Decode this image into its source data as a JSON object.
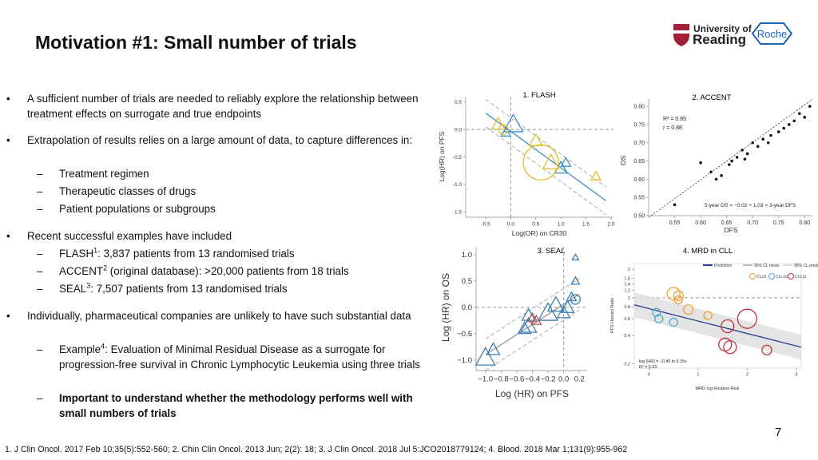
{
  "header": {
    "title": "Motivation #1: Small number of trials",
    "logo_university": [
      "University of",
      "Reading"
    ],
    "logo_company": "Roche"
  },
  "bullets": [
    {
      "text": "A sufficient number of trials are needed to reliably explore the relationship between treatment effects on surrogate and true endpoints"
    },
    {
      "text": "Extrapolation of results relies on a large amount of data, to capture differences in:",
      "subs": [
        {
          "text": "Treatment regimen"
        },
        {
          "text": "Therapeutic classes of drugs"
        },
        {
          "text": "Patient populations or subgroups"
        }
      ]
    },
    {
      "text": "Recent successful examples have included",
      "subs": [
        {
          "label": "FLASH",
          "ref": "1",
          "text": ": 3,837 patients from 13 randomised trials"
        },
        {
          "label": "ACCENT",
          "ref": "2",
          "text": " (original database): >20,000 patients from 18 trials"
        },
        {
          "label": "SEAL",
          "ref": "3",
          "text": ": 7,507 patients from 13 randomised trials"
        }
      ]
    },
    {
      "text": "Individually, pharmaceutical companies are unlikely to have such substantial data",
      "subs": [
        {
          "label": "Example",
          "ref": "4",
          "text": ": Evaluation of Minimal Residual Disease as a surrogate for progression-free survival in Chronic Lymphocytic Leukemia using three trials"
        },
        {
          "text": "Important to understand whether the methodology performs well with small numbers of trials",
          "bold": true
        }
      ]
    }
  ],
  "figures": [
    {
      "caption": "1. FLASH",
      "xlabel": "Log(OR) on CR30",
      "ylabel": "Log(HR) on PFS",
      "xlim": [
        -0.9,
        2.05
      ],
      "ylim": [
        -1.6,
        0.6
      ],
      "xticks": [
        {
          "value": -0.5,
          "label": "-0.5"
        },
        {
          "value": 0,
          "label": "0.0"
        },
        0.5,
        {
          "value": 1,
          "label": "1.0"
        },
        1.5,
        {
          "value": 2,
          "label": "2.0"
        }
      ],
      "yticks": [
        0.5,
        {
          "value": 0,
          "label": "0.0"
        },
        -0.5,
        {
          "value": -1,
          "label": "-1.0"
        },
        -1.5
      ],
      "reference": {
        "x": 0,
        "y": 0
      },
      "fit": [
        [
          -0.5,
          0.3
        ],
        [
          1.9,
          -1.3
        ]
      ],
      "band": 0.25,
      "fit_color": "#3a8fc5",
      "series": [
        {
          "marker": "triangle",
          "color": "#3a8fc5",
          "points": [
            [
              0.05,
              0.1,
              12
            ],
            [
              -0.1,
              -0.05,
              6
            ],
            [
              1.0,
              -0.7,
              8
            ],
            [
              1.1,
              -0.6,
              6
            ]
          ]
        },
        {
          "marker": "triangle",
          "color": "#e2c030",
          "points": [
            [
              0.5,
              -0.2,
              8
            ],
            [
              0.8,
              -0.6,
              10
            ],
            [
              1.7,
              -0.85,
              6
            ],
            [
              -0.25,
              0.1,
              8
            ]
          ]
        },
        {
          "marker": "circle",
          "color": "#e2c030",
          "points": [
            [
              0.6,
              -0.6,
              22
            ],
            [
              -0.15,
              0.0,
              6
            ]
          ]
        }
      ]
    },
    {
      "caption": "2. ACCENT",
      "xlabel": "DFS",
      "ylabel": "OS",
      "xlim": [
        0.5,
        0.815
      ],
      "ylim": [
        0.5,
        0.82
      ],
      "xticks": [
        0.55,
        {
          "value": 0.6,
          "label": "0.60"
        },
        0.65,
        {
          "value": 0.7,
          "label": "0.70"
        },
        0.75,
        {
          "value": 0.8,
          "label": "0.80"
        }
      ],
      "yticks": [
        {
          "value": 0.8,
          "label": "0.80"
        },
        0.75,
        {
          "value": 0.7,
          "label": "0.70"
        },
        0.65,
        {
          "value": 0.6,
          "label": "0.60"
        },
        0.55,
        {
          "value": 0.5,
          "label": "0.50"
        }
      ],
      "fit": [
        [
          0.5,
          0.495
        ],
        [
          0.815,
          0.8195
        ]
      ],
      "fit_color": "#333",
      "fit_dash": true,
      "annotations": [
        "R² = 0.85",
        "r = 0.88",
        "5-year OS = −0.02 + 1.03 × 3-year DFS"
      ],
      "series": [
        {
          "marker": "dot",
          "color": "#111",
          "points": [
            [
              0.55,
              0.53
            ],
            [
              0.6,
              0.645
            ],
            [
              0.62,
              0.62
            ],
            [
              0.63,
              0.6
            ],
            [
              0.64,
              0.61
            ],
            [
              0.655,
              0.64
            ],
            [
              0.66,
              0.65
            ],
            [
              0.67,
              0.66
            ],
            [
              0.68,
              0.68
            ],
            [
              0.685,
              0.655
            ],
            [
              0.69,
              0.67
            ],
            [
              0.7,
              0.7
            ],
            [
              0.71,
              0.69
            ],
            [
              0.72,
              0.71
            ],
            [
              0.73,
              0.7
            ],
            [
              0.735,
              0.72
            ],
            [
              0.75,
              0.73
            ],
            [
              0.76,
              0.74
            ],
            [
              0.77,
              0.75
            ],
            [
              0.78,
              0.76
            ],
            [
              0.79,
              0.78
            ],
            [
              0.8,
              0.77
            ],
            [
              0.81,
              0.8
            ]
          ]
        }
      ]
    },
    {
      "caption": "3. SEAL",
      "xlabel": "Log (HR) on PFS",
      "ylabel": "Log (HR) on OS",
      "xlim": [
        -1.12,
        0.3
      ],
      "ylim": [
        -1.2,
        1.15
      ],
      "xticks": [
        {
          "value": -1,
          "label": "−1.0"
        },
        {
          "value": -0.8,
          "label": "−0.8"
        },
        {
          "value": -0.6,
          "label": "−0.6"
        },
        {
          "value": -0.4,
          "label": "−0.4"
        },
        {
          "value": -0.2,
          "label": "−0.2"
        },
        {
          "value": 0,
          "label": "0.0"
        },
        0.2
      ],
      "yticks": [
        {
          "value": 1,
          "label": "1.0"
        },
        0.5,
        {
          "value": 0,
          "label": "0.0"
        },
        {
          "value": -0.5,
          "label": "−0.5"
        },
        {
          "value": -1,
          "label": "−1.0"
        }
      ],
      "reference": {
        "x": 0,
        "y": 0
      },
      "fit": [
        [
          -1.0,
          -0.9
        ],
        [
          0.2,
          0.25
        ]
      ],
      "band": 0.3,
      "fit_color": "#999",
      "series": [
        {
          "marker": "triangle",
          "color": "#3d7fb0",
          "points": [
            [
              -0.9,
              -0.8,
              8
            ],
            [
              -1.0,
              -0.95,
              12
            ],
            [
              -0.5,
              -0.4,
              8
            ],
            [
              -0.45,
              -0.35,
              10
            ],
            [
              -0.45,
              -0.15,
              8
            ],
            [
              -0.2,
              -0.1,
              12
            ],
            [
              -0.1,
              0.05,
              10
            ],
            [
              0.0,
              -0.1,
              8
            ],
            [
              0.05,
              0.0,
              8
            ],
            [
              0.1,
              0.2,
              6
            ],
            [
              0.15,
              0.95,
              4
            ],
            [
              0.15,
              0.5,
              5
            ]
          ]
        },
        {
          "marker": "triangle",
          "color": "#b85050",
          "points": [
            [
              -0.35,
              -0.25,
              6
            ],
            [
              -0.4,
              -0.2,
              6
            ]
          ]
        },
        {
          "marker": "circle",
          "color": "#3d7fb0",
          "points": [
            [
              0.15,
              0.15,
              6
            ]
          ]
        }
      ]
    },
    {
      "caption": "4. MRD in CLL",
      "xlabel": "MRD log Relative Risk",
      "ylabel": "PFS Hazard Ratio",
      "xlim": [
        -0.3,
        3.1
      ],
      "ylim": [
        0.18,
        2.3
      ],
      "ylog": true,
      "xticks": [
        0,
        1,
        2,
        3
      ],
      "yticks": [
        2,
        1.6,
        1.4,
        1.2,
        1,
        0.8,
        0.6,
        0.4,
        0.2
      ],
      "reference": {
        "y": 1
      },
      "fit": [
        [
          -0.3,
          0.84
        ],
        [
          3.1,
          0.3
        ]
      ],
      "band": 0.35,
      "fit_color": "#2a3b8f",
      "shaded": true,
      "legend": [
        "Prediction",
        "95% CL mean",
        "95% CL predicted"
      ],
      "annotations": [
        "log (HR) = −0.40 to 0.15x",
        "R² = 0.33"
      ],
      "series": [
        {
          "name": "CLL8",
          "marker": "circle",
          "color": "#f0a030",
          "points": [
            [
              0.5,
              1.1,
              8
            ],
            [
              0.6,
              1.05,
              6
            ],
            [
              0.6,
              0.95,
              5
            ],
            [
              0.8,
              0.75,
              6
            ],
            [
              1.2,
              0.65,
              5
            ]
          ]
        },
        {
          "name": "CLL10",
          "marker": "circle",
          "color": "#4aa8d8",
          "points": [
            [
              0.15,
              0.7,
              5
            ],
            [
              0.2,
              0.6,
              5
            ],
            [
              0.5,
              0.55,
              5
            ]
          ]
        },
        {
          "name": "CLL11",
          "marker": "circle",
          "color": "#c0303a",
          "points": [
            [
              2.0,
              0.6,
              12
            ],
            [
              1.6,
              0.5,
              8
            ],
            [
              1.65,
              0.3,
              8
            ],
            [
              1.55,
              0.32,
              8
            ],
            [
              2.4,
              0.28,
              6
            ]
          ]
        }
      ]
    }
  ],
  "page_number": "7",
  "footnote": "1.  J Clin Oncol. 2017 Feb 10;35(5):552-560; 2. Chin Clin Oncol. 2013 Jun; 2(2): 18; 3. J Clin Oncol. 2018 Jul 5:JCO2018779124; 4. Blood. 2018 Mar 1;131(9):955-962"
}
